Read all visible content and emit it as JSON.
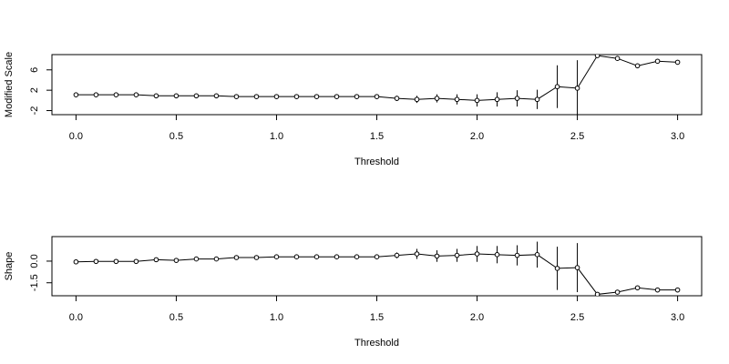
{
  "chart_data": [
    {
      "type": "line",
      "xlabel": "Threshold",
      "ylabel": "Modified Scale",
      "color": "#000000",
      "x": [
        0.0,
        0.1,
        0.2,
        0.3,
        0.4,
        0.5,
        0.6,
        0.7,
        0.8,
        0.9,
        1.0,
        1.1,
        1.2,
        1.3,
        1.4,
        1.5,
        1.6,
        1.7,
        1.8,
        1.9,
        2.0,
        2.1,
        2.2,
        2.3,
        2.4,
        2.5,
        2.6,
        2.7,
        2.8,
        2.9,
        3.0
      ],
      "values": [
        1.1,
        1.1,
        1.1,
        1.1,
        0.9,
        0.9,
        0.9,
        0.9,
        0.75,
        0.75,
        0.75,
        0.75,
        0.75,
        0.75,
        0.75,
        0.75,
        0.4,
        0.2,
        0.4,
        0.2,
        0.0,
        0.2,
        0.4,
        0.2,
        2.7,
        2.4,
        8.8,
        8.25,
        6.8,
        7.7,
        7.5
      ],
      "errors": [
        0.2,
        0.2,
        0.2,
        0.2,
        0.2,
        0.2,
        0.2,
        0.2,
        0.2,
        0.2,
        0.2,
        0.2,
        0.2,
        0.3,
        0.3,
        0.3,
        0.5,
        0.7,
        0.8,
        1.0,
        1.2,
        1.4,
        1.6,
        1.9,
        4.2,
        5.5,
        0,
        0,
        0,
        0,
        0
      ],
      "xlim": [
        -0.12,
        3.12
      ],
      "ylim": [
        -2.8,
        9.0
      ],
      "xticks": [
        {
          "value": 0,
          "label": "0.0"
        },
        0.5,
        {
          "value": 1,
          "label": "1.0"
        },
        1.5,
        {
          "value": 2,
          "label": "2.0"
        },
        2.5,
        {
          "value": 3,
          "label": "3.0"
        }
      ],
      "yticks": [
        -2,
        2,
        6
      ]
    },
    {
      "type": "line",
      "xlabel": "Threshold",
      "ylabel": "Shape",
      "color": "#000000",
      "x": [
        0.0,
        0.1,
        0.2,
        0.3,
        0.4,
        0.5,
        0.6,
        0.7,
        0.8,
        0.9,
        1.0,
        1.1,
        1.2,
        1.3,
        1.4,
        1.5,
        1.6,
        1.7,
        1.8,
        1.9,
        2.0,
        2.1,
        2.2,
        2.3,
        2.4,
        2.5,
        2.6,
        2.7,
        2.8,
        2.9,
        3.0
      ],
      "values": [
        -0.05,
        -0.02,
        -0.02,
        -0.02,
        0.1,
        0.05,
        0.15,
        0.15,
        0.25,
        0.25,
        0.3,
        0.3,
        0.3,
        0.3,
        0.3,
        0.3,
        0.4,
        0.5,
        0.35,
        0.4,
        0.5,
        0.45,
        0.4,
        0.45,
        -0.5,
        -0.45,
        -2.3,
        -2.15,
        -1.85,
        -2.0,
        -2.0
      ],
      "errors": [
        0.1,
        0.1,
        0.1,
        0.1,
        0.1,
        0.1,
        0.1,
        0.1,
        0.1,
        0.1,
        0.1,
        0.1,
        0.1,
        0.15,
        0.15,
        0.15,
        0.2,
        0.35,
        0.4,
        0.45,
        0.55,
        0.6,
        0.7,
        0.9,
        1.5,
        1.7,
        0,
        0,
        0,
        0,
        0
      ],
      "xlim": [
        -0.12,
        3.12
      ],
      "ylim": [
        -2.4,
        1.7
      ],
      "xticks": [
        {
          "value": 0,
          "label": "0.0"
        },
        0.5,
        {
          "value": 1,
          "label": "1.0"
        },
        1.5,
        {
          "value": 2,
          "label": "2.0"
        },
        2.5,
        {
          "value": 3,
          "label": "3.0"
        }
      ],
      "yticks": [
        -1.5,
        {
          "value": 0,
          "label": "0.0"
        }
      ]
    }
  ]
}
